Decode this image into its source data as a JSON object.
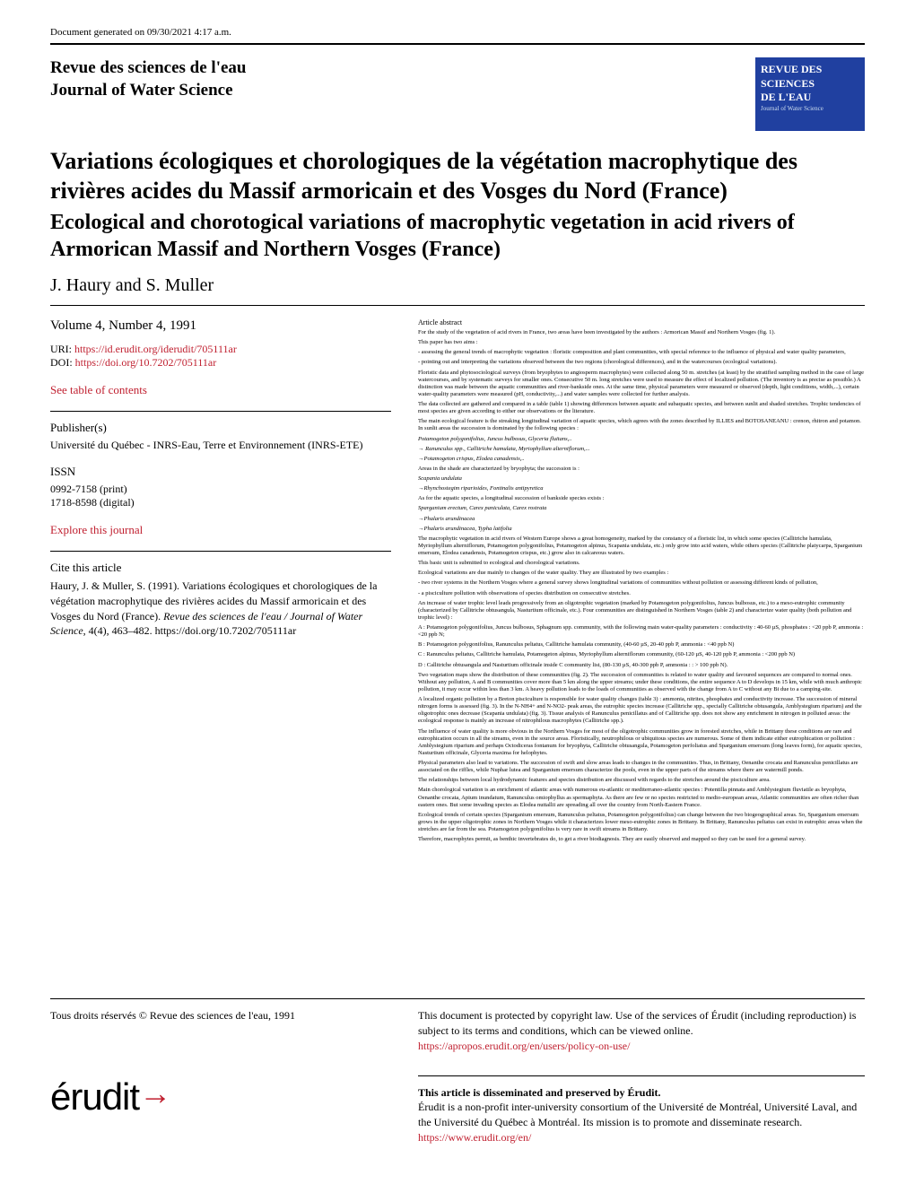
{
  "gen_date": "Document generated on 09/30/2021 4:17 a.m.",
  "journal": {
    "title_fr": "Revue des sciences de l'eau",
    "title_en": "Journal of Water Science",
    "logo_line1": "REVUE DES",
    "logo_line2": "SCIENCES",
    "logo_line3": "DE L'EAU",
    "logo_sub": "Journal of Water Science"
  },
  "article": {
    "title_fr": "Variations écologiques et chorologiques de la végétation macrophytique des rivières acides du Massif armoricain et des Vosges du Nord (France)",
    "title_en": "Ecological and chorotogical variations of macrophytic vegetation in acid rivers of Armorican Massif and Northern Vosges (France)",
    "authors": "J. Haury and S. Muller"
  },
  "meta": {
    "volume": "Volume 4, Number 4, 1991",
    "uri_label": "URI: ",
    "uri": "https://id.erudit.org/iderudit/705111ar",
    "doi_label": "DOI: ",
    "doi": "https://doi.org/10.7202/705111ar",
    "toc": "See table of contents",
    "publisher_heading": "Publisher(s)",
    "publisher": "Université du Québec - INRS-Eau, Terre et Environnement (INRS-ETE)",
    "issn_heading": "ISSN",
    "issn_print": "0992-7158 (print)",
    "issn_digital": "1718-8598 (digital)",
    "explore": "Explore this journal",
    "cite_heading": "Cite this article",
    "citation_author": "Haury, J. & Muller, S. (1991). Variations écologiques et chorologiques de la végétation macrophytique des rivières acides du Massif armoricain et des Vosges du Nord (France). ",
    "citation_journal": "Revue des sciences de l'eau / Journal of Water Science",
    "citation_rest": ", 4(4), 463–482. https://doi.org/10.7202/705111ar"
  },
  "abstract": {
    "heading": "Article abstract",
    "p1": "For the study of the vegetation of acid rivers in France, two areas have been investigated by the authors : Armorican Massif and Northern Vosges (fig. 1).",
    "p2": "This paper has two aims :",
    "p3": "- assessing the general trends of macrophytic vegetation : floristic composition and plant communities, with special reference to the influence of physical and water quality parameters,",
    "p4": "- pointing out and interpreting the variations observed between the two regions (chorological differences), and in the watercourses (ecological variations).",
    "p5": "Floristic data and phytosociological surveys (from bryophytes to angiosperm macrophytes) were collected along 50 m. stretches (at least) by the stratified sampling method in the case of large watercourses, and by systematic surveys for smaller ones. Consecutive 50 m. long stretches were used to measure the effect of localized pollution. (The inventory is as precise as possible.) A distinction was made between the aquatic communities and river-bankside ones. At the same time, physical parameters were measured or observed (depth, light conditions, width,...), certain water-quality parameters were measured (pH, conductivity,...) and water samples were collected for further analysis.",
    "p6": "The data collected are gathered and compared in a table (table 1) showing differences between aquatic and subaquatic species, and between sunlit and shaded stretches. Trophic tendencies of most species are given according to either our observations or the literature.",
    "p7": "The main ecological feature is the streaking longitudinal variation of aquatic species, which agrees with the zones described by ILLIES and BOTOSANEANU : crenon, rhitron and potamon. In sunlit areas the succession is dominated by the following species :",
    "p8": "Potamogeton polygonifolius, Juncus bulbosus, Glyceria fluitans,..",
    "p9": "→ Ranunculus spp., Callitriche hamulata, Myriophyllum alterniflorum,...",
    "p10": "    →Potamogeton crispus, Elodea canadensis,..",
    "p11": "Areas in the shade are characterized by bryophyta; the succession is :",
    "p12": "Scapania undulata",
    "p13": "→Rhynchostegim riparioides, Fontinalis antipyretica",
    "p14": "As for the aquatic species, a longitudinal succession of bankside species exists :",
    "p15": "Sparganium erectum, Carex paniculata, Carex rostrata",
    "p16": "→Phalaris arundinacea",
    "p17": "    →Phalaris arundinacea, Typha latifolia",
    "p18": "The macrophytic vegetation in acid rivers of Western Europe shows a great homogeneity, marked by the constancy of a floristic list, in which some species (Callitriche hamulata, Myriophyllum alterniflorum, Potamogeton polygonifolius, Potamogeton alpinus, Scapania undulata, etc.) only grow into acid waters, while others species (Callitriche platycarpa, Sparganium emersum, Elodea canadensis, Potamogeton crispus, etc.) grow also in calcareous waters.",
    "p19": "This basic unit is submitted to ecological and chorological variations.",
    "p20": "Ecological variations are due mainly to changes of the water quality. They are illustrated by two examples :",
    "p21": "- two river systems in the Northern Vosges where a general survey shows longitudinal variations of communities without pollution or assessing different kinds of pollution,",
    "p22": "- a pisciculture pollution with observations of species distribution on consecutive stretches.",
    "p23": "An increase of water trophic level leads progressively from an oligotrophic vegetation (marked by Potamogeton polygonifolius, Juncus bulbosus, etc.) to a meso-eutrophic community (characterized by Callitriche obtusangula, Nasturtium officinale, etc.). Four communities are distinguished in Northern Vosges (table 2) and characterize water quality (both pollution and trophic level) :",
    "p24": "A : Potamogeton polygonifolius, Juncus bulbosus, Sphagnum spp. community, with the following main water-quality parameters : conductivity : 40-60 µS, phosphates : <20 ppb P, ammonia : <20 ppb N;",
    "p25": "B : Potamogeton polygonifolius, Ranunculus peltatus, Callitriche hamulata community, (40-60 µS, 20-40 ppb P, ammonia : <40 ppb N)",
    "p26": "C : Ranunculus peltatus, Callitriche hamulata, Potamogeton alpinus, Myriophyllum alterniflorum community, (60-120 µS, 40-120 ppb P, ammonia : <200 ppb N)",
    "p27": "D : Callitriche obtusangula and Nasturtium officinale inside C community list, (80-130 µS, 40-300 ppb P, ammonia : : > 100 ppb N).",
    "p28": "Two vegetation maps show the distribution of these communities (fig. 2). The succession of communities is related to water quality and favoured sequences are compared to normal ones. Without any pollution, A and B communities cover more than 5 km along the upper streams; under these conditions, the entire sequence A to D develops in 15 km, while with much anthropic pollution, it may occur within less than 3 km. A heavy pollution leads to the loads of communities as observed with the change from A to C without any Bi due to a camping-site.",
    "p29": "A localized organic pollution by a Breton pisciculture is responsible for water quality changes (table 3) : ammonia, nitrites, phosphates and conductivity increase. The succession of mineral nitrogen forms is assessed (fig. 3). In the N-NH4+ and N-NO2- peak areas, the eutrophic species increase (Callitriche spp., specially Callitriche obtusangula, Amblystegium riparium) and the oligotrophic ones decrease (Scapania undulata) (fig. 3). Tissue analysis of Ranunculus penicillatus and of Callitriche spp. does not show any enrichment in nitrogen in polluted areas: the ecological response is mainly an increase of nitrophilous macrophytes (Callitriche spp.).",
    "p30": "The influence of water quality is more obvious in the Northern Vosges for most of the oligotrophic communities grow in forested stretches, while in Brittany these conditions are rare and eutrophication occurs in all the streams, even in the source areas. Floristically, neutrophilous or ubiquitous species are numerous. Some of them indicate either eutrophication or pollution : Amblystegium riparium and perhaps Octodiceras fontanum for bryophyta, Callitriche obtusangula, Potamogeton perfoliatus and Sparganium emersum (long leaves form), for aquatic species, Nasturtium officinale, Glyceria maxima for helophytes.",
    "p31": "Physical parameters also lead to variations. The succession of swift and slow areas leads to changes in the communities. Thus, in Brittany, Oenanthe crocata and Ranunculus penicillatus are associated on the riffles, while Nuphar lutea and Sparganium emersum characterize the pools, even in the upper parts of the streams where there are watermill ponds.",
    "p32": "The relationships between local hydrodynamic features and species distribution are discussed with regards to the stretches around the pisciculture area.",
    "p33": "Main chorological variation is an enrichment of atlantic areas with numerous eu-atlantic or mediterraneo-atlantic species : Potentilla pinnata and Amblystegium fluviatile as bryophyta, Oenanthe crocata, Apium inundatum, Ranunculus omiophyllus as spermaphyta. As there are few or no species restricted to medio-european areas, Atlantic communities are often richer than eastern ones. But some invading species as Elodea nuttallii are spreading all over the country from North-Eastern France.",
    "p34": "Ecological trends of certain species (Sparganium emersum, Ranunculus peltatus, Potamogeton polygonifolius) can change between the two biogeographical areas. So, Sparganium emersum grows in the upper oligotrophic zones in Northern Vosges while it characterizes lower meso-eutrophic zones in Brittany. In Brittany, Ranunculus peltatus can exist in eutrophic areas when the stretches are far from the sea. Potamogeton polygonifolius is very rare in swift streams in Brittany.",
    "p35": "Therefore, macrophytes permit, as benthic invertebrates do, to get a river biodiagnosis. They are easily observed and mapped so they can be used for a general survey."
  },
  "footer": {
    "copyright": "Tous droits réservés ©  Revue des sciences de l'eau, 1991",
    "protection": "This document is protected by copyright law. Use of the services of Érudit (including reproduction) is subject to its terms and conditions, which can be viewed online.",
    "policy_url": "https://apropos.erudit.org/en/users/policy-on-use/",
    "preserved_heading": "This article is disseminated and preserved by Érudit.",
    "preserved_text": "Érudit is a non-profit inter-university consortium of the Université de Montréal, Université Laval, and the Université du Québec à Montréal. Its mission is to promote and disseminate research.",
    "erudit_url": "https://www.erudit.org/en/",
    "logo_text": "érudit"
  },
  "colors": {
    "link": "#c02030",
    "logo_bg": "#2040a0",
    "text": "#000000",
    "bg": "#ffffff"
  }
}
